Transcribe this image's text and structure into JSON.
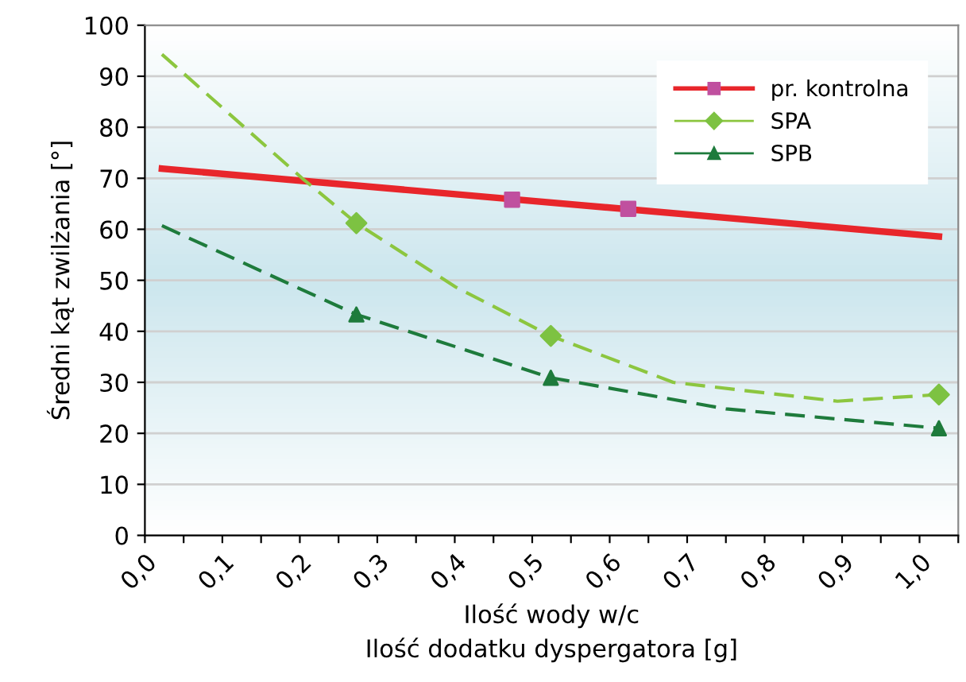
{
  "chart_data": {
    "type": "scatter",
    "xlabel": "Ilość wody w/c\nIlość dodatku dyspergatora [g]",
    "ylabel": "Średni kąt zwilżania [°]",
    "xlim": [
      0,
      1.05
    ],
    "xticks": [
      {
        "value": 0,
        "label": "0,0"
      },
      {
        "value": 0.05,
        "label": null
      },
      {
        "value": 0.1,
        "label": "0,1"
      },
      {
        "value": 0.15,
        "label": null
      },
      {
        "value": 0.2,
        "label": "0,2"
      },
      {
        "value": 0.25,
        "label": null
      },
      {
        "value": 0.3,
        "label": "0,3"
      },
      {
        "value": 0.35,
        "label": null
      },
      {
        "value": 0.4,
        "label": "0,4"
      },
      {
        "value": 0.45,
        "label": null
      },
      {
        "value": 0.5,
        "label": "0,5"
      },
      {
        "value": 0.55,
        "label": null
      },
      {
        "value": 0.6,
        "label": "0,6"
      },
      {
        "value": 0.65,
        "label": null
      },
      {
        "value": 0.7,
        "label": "0,7"
      },
      {
        "value": 0.75,
        "label": null
      },
      {
        "value": 0.8,
        "label": "0,8"
      },
      {
        "value": 0.85,
        "label": null
      },
      {
        "value": 0.9,
        "label": "0,9"
      },
      {
        "value": 0.95,
        "label": null
      },
      {
        "value": 1.0,
        "label": "1,0"
      },
      {
        "value": 1.05,
        "label": null
      }
    ],
    "ylim": [
      0,
      100
    ],
    "yticks": [
      0,
      10,
      20,
      30,
      40,
      50,
      60,
      70,
      80,
      90,
      100
    ],
    "grid": "y",
    "legend": "top right",
    "series": [
      {
        "type": "line",
        "color": "#e8262b",
        "line_style": "solid",
        "marker": "none",
        "x": [
          0.022,
          1.025
        ],
        "values": [
          71.9,
          58.6
        ]
      },
      {
        "type": "line",
        "color": "#8cc63f",
        "line_style": "dashed",
        "marker": "none",
        "x": [
          0.022,
          0.203,
          0.273,
          0.401,
          0.524,
          0.682,
          0.894,
          1.025
        ],
        "values": [
          94.3,
          70,
          61.2,
          48.7,
          39.1,
          30,
          26.3,
          27.6
        ]
      },
      {
        "type": "line",
        "color": "#1e7b3c",
        "line_style": "dashed",
        "marker": "none",
        "x": [
          0.022,
          0.273,
          0.524,
          0.75,
          1.025
        ],
        "values": [
          60.7,
          43.3,
          30.9,
          24.8,
          21.0
        ]
      },
      {
        "name": "pr. kontrolna",
        "color": "#c0509f",
        "marker": "square",
        "x": [
          0.474,
          0.624
        ],
        "values": [
          65.8,
          64.0
        ]
      },
      {
        "name": "SPA",
        "color": "#7dc242",
        "marker": "diamond",
        "x": [
          0.273,
          0.524,
          1.025
        ],
        "values": [
          61.2,
          39.1,
          27.6
        ]
      },
      {
        "name": "SPB",
        "color": "#1e7b3c",
        "marker": "triangle",
        "x": [
          0.273,
          0.524,
          1.025
        ],
        "values": [
          43.3,
          30.9,
          21.0
        ]
      }
    ]
  }
}
